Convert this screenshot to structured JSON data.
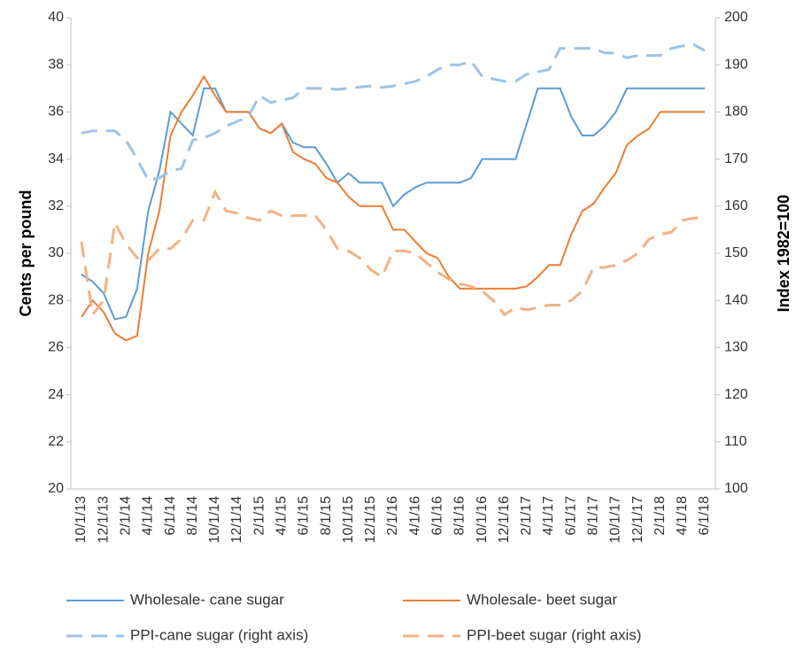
{
  "chart_data": {
    "type": "line",
    "y_label": "Cents per pound",
    "y2_label": "Index 1982=100",
    "categories": [
      "10/1/13",
      null,
      "12/1/13",
      null,
      "2/1/14",
      null,
      "4/1/14",
      null,
      "6/1/14",
      null,
      "8/1/14",
      null,
      "10/1/14",
      null,
      "12/1/14",
      null,
      "2/1/15",
      null,
      "4/1/15",
      null,
      "6/1/15",
      null,
      "8/1/15",
      null,
      "10/1/15",
      null,
      "12/1/15",
      null,
      "2/1/16",
      null,
      "4/1/16",
      null,
      "6/1/16",
      null,
      "8/1/16",
      null,
      "10/1/16",
      null,
      "12/1/16",
      null,
      "2/1/17",
      null,
      "4/1/17",
      null,
      "6/1/17",
      null,
      "8/1/17",
      null,
      "10/1/17",
      null,
      "12/1/17",
      null,
      "2/1/18",
      null,
      "4/1/18",
      null,
      "6/1/18"
    ],
    "ylim": [
      20,
      40
    ],
    "yticks": [
      20,
      22,
      24,
      26,
      28,
      30,
      32,
      34,
      36,
      38,
      40
    ],
    "y2lim": [
      100,
      200
    ],
    "y2ticks": [
      100,
      110,
      120,
      130,
      140,
      150,
      160,
      170,
      180,
      190,
      200
    ],
    "grid": false,
    "legend": "bottom",
    "series": [
      {
        "name": "Wholesale- cane sugar",
        "color": "#5b9bd5",
        "dashed": false,
        "axis": "y",
        "values": [
          29.1,
          28.8,
          28.3,
          27.2,
          27.3,
          28.5,
          31.8,
          33.5,
          36,
          35.5,
          35,
          37,
          37,
          36,
          36,
          36,
          35.3,
          35.1,
          35.5,
          34.7,
          34.5,
          34.5,
          33.8,
          33,
          33.4,
          33,
          33,
          33,
          32,
          32.5,
          32.8,
          33,
          33,
          33,
          33,
          33.2,
          34,
          34,
          34,
          34,
          35.5,
          37,
          37,
          37,
          35.8,
          35,
          35,
          35.4,
          36,
          37,
          37,
          37,
          37,
          37,
          37,
          37,
          37
        ]
      },
      {
        "name": "Wholesale- beet sugar",
        "color": "#ed7d31",
        "dashed": false,
        "axis": "y",
        "values": [
          27.3,
          28,
          27.5,
          26.6,
          26.3,
          26.5,
          30,
          31.8,
          35,
          36,
          36.7,
          37.5,
          36.7,
          36,
          36,
          36,
          35.3,
          35.1,
          35.5,
          34.3,
          34,
          33.8,
          33.2,
          33,
          32.4,
          32,
          32,
          32,
          31,
          31,
          30.5,
          30,
          29.8,
          29,
          28.5,
          28.5,
          28.5,
          28.5,
          28.5,
          28.5,
          28.6,
          29,
          29.5,
          29.5,
          30.8,
          31.8,
          32.1,
          32.8,
          33.4,
          34.6,
          35,
          35.3,
          36,
          36,
          36,
          36,
          36
        ]
      },
      {
        "name": "PPI-cane sugar (right axis)",
        "color": "#9dc3e6",
        "dashed": true,
        "axis": "y2",
        "values": [
          175.5,
          176,
          176,
          176,
          174,
          170,
          165.5,
          166,
          167.5,
          168,
          174,
          174.5,
          175.5,
          177,
          178,
          179,
          183.5,
          182,
          182.5,
          183,
          185,
          185,
          185,
          184.8,
          185,
          185.3,
          185.5,
          185.2,
          185.5,
          186,
          186.5,
          187.5,
          189,
          190,
          190,
          190.8,
          187.5,
          187,
          186.5,
          186.5,
          188,
          188.5,
          189,
          193.5,
          193.5,
          193.5,
          193.5,
          192.5,
          192.5,
          191.5,
          192,
          192,
          192,
          193.5,
          194,
          194.3,
          193
        ]
      },
      {
        "name": "PPI-beet sugar (right axis)",
        "color": "#f4b183",
        "dashed": true,
        "axis": "y2",
        "values": [
          152.5,
          137,
          140,
          156.5,
          152,
          149,
          148.5,
          151,
          151,
          153,
          157,
          157,
          163,
          159,
          158.5,
          157.5,
          157,
          159,
          158,
          158,
          158,
          158,
          155,
          151,
          150.5,
          149,
          146.5,
          145,
          150.5,
          150.5,
          150,
          148,
          146,
          144.5,
          143.5,
          143,
          142,
          140,
          137,
          138.5,
          138,
          138.5,
          139,
          139,
          140,
          142,
          147,
          147,
          147.5,
          148.5,
          150,
          153,
          154,
          154.5,
          157,
          157.5,
          157.5
        ]
      }
    ]
  }
}
